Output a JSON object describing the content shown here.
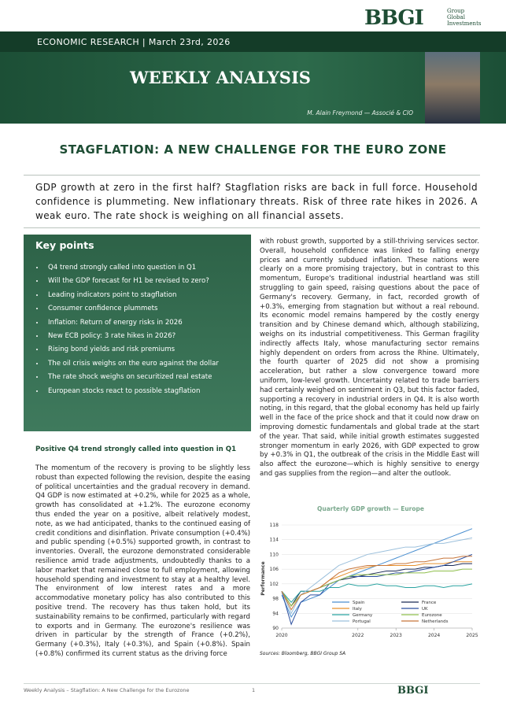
{
  "header": {
    "logo": "BBGI",
    "logo_group": "Group",
    "logo_sub": "Global Investments"
  },
  "hero": {
    "strip": "ECONOMIC RESEARCH | March 23rd, 2026",
    "title": "WEEKLY ANALYSIS",
    "author": "M. Alain Freymond — Associé & CIO"
  },
  "title": "STAGFLATION: A NEW CHALLENGE FOR THE EURO ZONE",
  "lead": "GDP growth at zero in the first half? Stagflation risks are back in full force. Household confidence is plummeting. New inflationary threats. Risk of three rate hikes in 2026. A weak euro. The rate shock is weighing on all financial assets.",
  "key_points": {
    "title": "Key points",
    "items": [
      "Q4 trend strongly called into question in Q1",
      "Will the GDP forecast for H1 be revised to zero?",
      "Leading indicators point to stagflation",
      "Consumer confidence plummets",
      "Inflation: Return of energy risks in 2026",
      "New ECB policy: 3 rate hikes in 2026?",
      "Rising bond yields and risk premiums",
      "The oil crisis weighs on the euro against the dollar",
      "The rate shock weighs on securitized real estate",
      "European stocks react to possible stagflation"
    ]
  },
  "section": {
    "heading": "Positive Q4 trend strongly called into question in Q1",
    "left_text": "The momentum of the recovery is proving to be slightly less robust than expected following the revision, despite the easing of political uncertainties and the gradual recovery in demand. Q4 GDP is now estimated at +0.2%, while for 2025 as a whole, growth has consolidated at +1.2%. The eurozone economy thus ended the year on a positive, albeit relatively modest, note, as we had anticipated, thanks to the continued easing of credit conditions and disinflation. Private consumption (+0.4%) and public spending (+0.5%) supported growth, in contrast to inventories. Overall, the eurozone demonstrated considerable resilience amid trade adjustments, undoubtedly thanks to a labor market that remained close to full employment, allowing household spending and investment to stay at a healthy level. The environment of low interest rates and a more accommodative monetary policy has also contributed to this positive trend. The recovery has thus taken hold, but its sustainability remains to be confirmed, particularly with regard to exports and in Germany. The eurozone's resilience was driven in particular by the strength of France (+0.2%), Germany (+0.3%), Italy (+0.3%), and Spain (+0.8%). Spain (+0.8%) confirmed its current status as the driving force",
    "right_text": "with robust growth, supported by a still-thriving services sector. Overall, household confidence was linked to falling energy prices and currently subdued inflation. These nations were clearly on a more promising trajectory, but in contrast to this momentum, Europe's traditional industrial heartland was still struggling to gain speed, raising questions about the pace of Germany's recovery. Germany, in fact, recorded growth of +0.3%, emerging from stagnation but without a real rebound. Its economic model remains hampered by the costly energy transition and by Chinese demand which, although stabilizing, weighs on its industrial competitiveness. This German fragility indirectly affects Italy, whose manufacturing sector remains highly dependent on orders from across the Rhine. Ultimately, the fourth quarter of 2025 did not show a promising acceleration, but rather a slow convergence toward more uniform, low-level growth. Uncertainty related to trade barriers had certainly weighed on sentiment in Q3, but this factor faded, supporting a recovery in industrial orders in Q4. It is also worth noting, in this regard, that the global economy has held up fairly well in the face of the price shock and that it could now draw on improving domestic fundamentals and global trade at the start of the year. That said, while initial growth estimates suggested stronger momentum in early 2026, with GDP expected to grow by +0.3% in Q1, the outbreak of the crisis in the Middle East will also affect the eurozone—which is highly sensitive to energy and gas supplies from the region—and alter the outlook."
  },
  "chart_data": {
    "type": "line",
    "title": "Quarterly GDP growth — Europe",
    "y_label": "Performance",
    "x": [
      2020,
      2020.25,
      2020.5,
      2020.75,
      2021,
      2021.25,
      2021.5,
      2021.75,
      2022,
      2022.25,
      2022.5,
      2022.75,
      2023,
      2023.25,
      2023.5,
      2023.75,
      2024,
      2024.25,
      2024.5,
      2024.75,
      2025
    ],
    "xlim": [
      2020,
      2025
    ],
    "xticks": [
      2020,
      2022,
      2023,
      2024,
      2025
    ],
    "ylim": [
      90,
      118
    ],
    "yticks": [
      90,
      94,
      98,
      102,
      106,
      110,
      114,
      118
    ],
    "grid": true,
    "series": [
      {
        "name": "Spain",
        "color": "#4a8fd0",
        "values": [
          99,
          93,
          97,
          98,
          99,
          101,
          103,
          104,
          105,
          106,
          107,
          108,
          109,
          110,
          111,
          112,
          113,
          114,
          115,
          116,
          117
        ]
      },
      {
        "name": "France",
        "color": "#1b2a55",
        "values": [
          100,
          96,
          100,
          100,
          101,
          102,
          103,
          103.5,
          104,
          104.5,
          105,
          105.5,
          105.5,
          106,
          106,
          106.5,
          106.5,
          107,
          107,
          107.5,
          107.5
        ]
      },
      {
        "name": "Italy",
        "color": "#e8912e",
        "values": [
          100,
          96,
          99,
          100,
          101,
          103,
          104,
          105,
          106,
          106.5,
          107,
          107,
          107,
          107,
          107,
          107.5,
          107.5,
          107.5,
          108,
          108,
          108
        ]
      },
      {
        "name": "UK",
        "color": "#2c4f9e",
        "values": [
          100,
          91,
          97,
          99,
          99,
          102,
          103,
          104,
          104,
          104,
          104,
          104.5,
          105,
          105,
          105.5,
          106,
          106.5,
          107,
          108,
          109,
          110
        ]
      },
      {
        "name": "Germany",
        "color": "#2aa3a0",
        "values": [
          100,
          97,
          100,
          100,
          100,
          101,
          101,
          102,
          101.5,
          101.5,
          102,
          101.5,
          101.5,
          101,
          101,
          101.5,
          101.5,
          101,
          101.5,
          101.5,
          102
        ]
      },
      {
        "name": "Eurozone",
        "color": "#8fbf4d",
        "values": [
          100,
          96,
          99,
          100,
          101,
          102,
          103,
          104,
          104.5,
          104.5,
          104.5,
          104.5,
          104.5,
          105,
          105,
          105,
          105.5,
          105.5,
          105.5,
          106,
          106
        ]
      },
      {
        "name": "Portugal",
        "color": "#9cc0dc",
        "values": [
          100,
          94,
          99,
          101,
          103,
          105,
          107,
          108,
          109,
          110,
          110.5,
          111,
          111.5,
          112,
          112,
          112.5,
          113,
          113,
          113.5,
          114,
          114.5
        ]
      },
      {
        "name": "Netherlands",
        "color": "#c8763a",
        "values": [
          100,
          95,
          99,
          100,
          101,
          103,
          105,
          106,
          106.5,
          107,
          107,
          107,
          107.5,
          107.5,
          108,
          108,
          108.5,
          109,
          109,
          109.5,
          109.5
        ]
      }
    ]
  },
  "source": "Sources: Bloomberg, BBGI Group SA",
  "footer": {
    "text": "Weekly Analysis – Stagflation: A New Challenge for the Eurozone",
    "page": "1"
  }
}
